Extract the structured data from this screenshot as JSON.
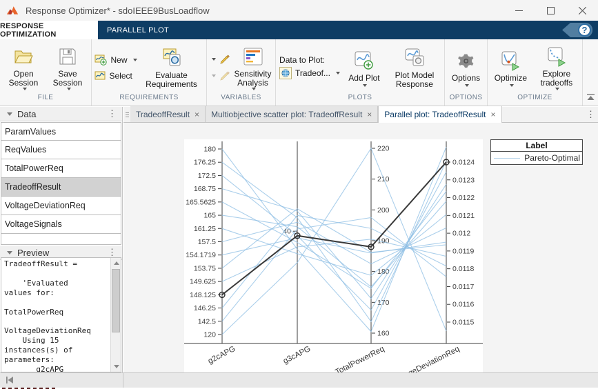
{
  "window": {
    "title": "Response Optimizer* - sdoIEEE9BusLoadflow",
    "controls": [
      "minimize",
      "maximize",
      "close"
    ]
  },
  "ribbon": {
    "tabs": [
      {
        "label": "RESPONSE OPTIMIZATION",
        "active": true
      },
      {
        "label": "PARALLEL PLOT",
        "active": false
      }
    ],
    "help_glyph": "?",
    "accent_color": "#0e3d64"
  },
  "toolbar": {
    "sections": {
      "file": {
        "label": "FILE",
        "open": {
          "label": "Open Session",
          "icon": "folder-open-icon",
          "dropdown": true
        },
        "save": {
          "label": "Save Session",
          "icon": "save-icon",
          "dropdown": true
        }
      },
      "requirements": {
        "label": "REQUIREMENTS",
        "new": {
          "label": "New",
          "icon": "new-requirement-icon",
          "dropdown": true
        },
        "select": {
          "label": "Select",
          "icon": "select-requirement-icon"
        },
        "evaluate": {
          "label": "Evaluate Requirements",
          "icon": "evaluate-requirements-icon"
        }
      },
      "variables": {
        "label": "VARIABLES",
        "sensitivity": {
          "label": "Sensitivity Analysis",
          "icon": "sensitivity-analysis-icon",
          "dropdown": true
        }
      },
      "plots": {
        "label": "PLOTS",
        "data_to_plot_label": "Data to Plot:",
        "data_to_plot_value": "Tradeof...",
        "add_plot": {
          "label": "Add Plot",
          "icon": "add-plot-icon",
          "dropdown": true
        },
        "plot_model_response": {
          "label": "Plot Model Response",
          "icon": "plot-model-response-icon"
        }
      },
      "options": {
        "label": "OPTIONS",
        "options": {
          "label": "Options",
          "icon": "gear-icon",
          "dropdown": true
        }
      },
      "optimize": {
        "label": "OPTIMIZE",
        "optimize": {
          "label": "Optimize",
          "icon": "optimize-icon",
          "dropdown": true
        },
        "explore": {
          "label": "Explore tradeoffs",
          "icon": "explore-tradeoffs-icon",
          "dropdown": true
        }
      }
    }
  },
  "sidebar": {
    "data_panel": {
      "title": "Data",
      "items": [
        {
          "label": "ParamValues",
          "selected": false
        },
        {
          "label": "ReqValues",
          "selected": false
        },
        {
          "label": "TotalPowerReq",
          "selected": false
        },
        {
          "label": "TradeoffResult",
          "selected": true
        },
        {
          "label": "VoltageDeviationReq",
          "selected": false
        },
        {
          "label": "VoltageSignals",
          "selected": false
        }
      ],
      "selection_color": "#d2d2d2"
    },
    "preview_panel": {
      "title": "Preview",
      "lines": [
        "TradeoffResult =",
        "",
        "    'Evaluated",
        "values for:",
        "",
        "TotalPowerReq",
        "",
        "VoltageDeviationReq",
        "    Using 15",
        "instances(s) of",
        "parameters:",
        "       g2cAPG"
      ]
    }
  },
  "main": {
    "tabs": [
      {
        "label": "TradeoffResult",
        "active": false
      },
      {
        "label": "Multiobjective scatter plot: TradeoffResult",
        "active": false
      },
      {
        "label": "Parallel plot: TradeoffResult",
        "active": true
      }
    ],
    "tab_close_glyph": "×"
  },
  "chart_data": {
    "type": "parallel-coordinates",
    "title": "",
    "legend": {
      "title": "Label",
      "entries": [
        {
          "label": "Pareto-Optimal",
          "color": "#b8d4ea"
        }
      ]
    },
    "axes": [
      {
        "name": "g2cAPG",
        "scale": "ordinal",
        "ticks": [
          "180",
          "176.25",
          "172.5",
          "168.75",
          "165.5625",
          "165",
          "161.25",
          "157.5",
          "154.1719",
          "153.75",
          "149.625",
          "148.125",
          "146.25",
          "142.5",
          "120"
        ]
      },
      {
        "name": "g3cAPG",
        "scale": "linear",
        "ticks": [
          "40"
        ],
        "domain": [
          44,
          35
        ]
      },
      {
        "name": "TotalPowerReq",
        "scale": "linear",
        "ticks": [
          "220",
          "210",
          "200",
          "190",
          "180",
          "170",
          "160"
        ]
      },
      {
        "name": "VoltageDeviationReq",
        "scale": "linear",
        "ticks": [
          "0.0124",
          "0.0123",
          "0.0122",
          "0.0121",
          "0.012",
          "0.0119",
          "0.0118",
          "0.0117",
          "0.0116",
          "0.0115"
        ]
      }
    ],
    "pareto_lines": [
      [
        180,
        39.2,
        160.5,
        0.012485
      ],
      [
        176.25,
        40.6,
        163.75,
        0.012405
      ],
      [
        172.5,
        39.8,
        167.5,
        0.012345
      ],
      [
        168.75,
        40.9,
        171.25,
        0.012275
      ],
      [
        165.5625,
        39.5,
        174.5,
        0.012235
      ],
      [
        165,
        40.2,
        175.0,
        0.01218
      ],
      [
        161.25,
        39.0,
        178.75,
        0.012105
      ],
      [
        157.5,
        40.4,
        182.5,
        0.01203
      ],
      [
        154.1719,
        39.7,
        186.0,
        0.01195
      ],
      [
        153.75,
        41.0,
        186.25,
        0.011935
      ],
      [
        149.625,
        39.3,
        190.5,
        0.01187
      ],
      [
        146.25,
        40.7,
        194.0,
        0.011815
      ],
      [
        142.5,
        40.1,
        197.5,
        0.011755
      ],
      [
        120,
        38.6,
        220,
        0.01145
      ]
    ],
    "selected_line": {
      "values": [
        148.125,
        39.8,
        188,
        0.0124
      ],
      "color": "#3a3a3a"
    },
    "line_color": "#8fbfe4",
    "instances": 15
  }
}
